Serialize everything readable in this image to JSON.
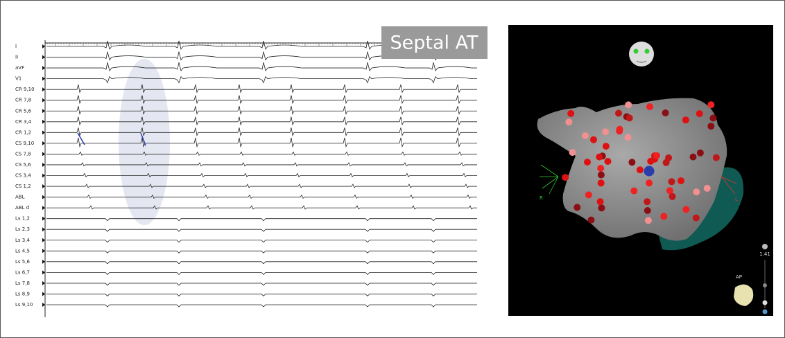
{
  "tracings": {
    "channels": [
      "I",
      "II",
      "aVF",
      "V1",
      "CR 9,10",
      "CR 7,8",
      "CR 5,6",
      "CR 3,4",
      "CR 1,2",
      "CS 9,10",
      "CS 7,8",
      "CS 5,6",
      "CS 3,4",
      "CS 1,2",
      "ABL",
      "ABL d",
      "Ls 1,2",
      "Ls 2,3",
      "Ls 3,4",
      "Ls 4,5",
      "Ls 5,6",
      "Ls 6,7",
      "Ls 7,8",
      "Ls 8,9",
      "Ls 9,10"
    ]
  },
  "badge": "Septal AT",
  "map": {
    "right_label": "R",
    "left_label": "L",
    "zoom": "1.41",
    "view": "AP"
  }
}
